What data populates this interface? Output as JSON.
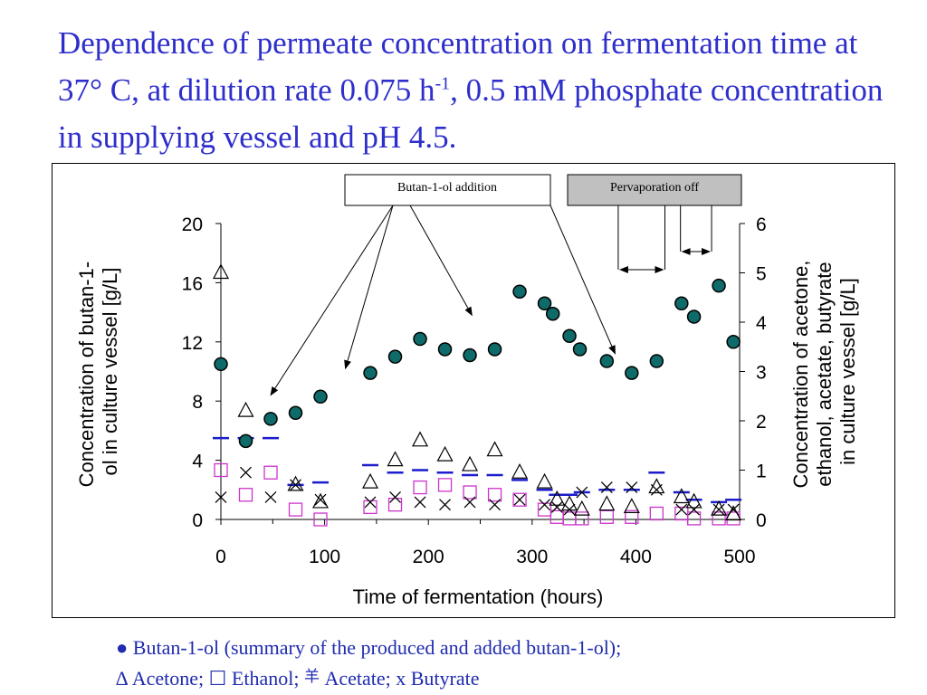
{
  "slide": {
    "title_main": "Dependence of permeate concentration on fermentation time at 37°  C, at dilution rate 0.075 h",
    "title_sup": "-1",
    "title_end": ", 0.5 mM phosphate concentration in supplying vessel and pH 4.5."
  },
  "caption": {
    "line1_symbol": "●",
    "line1_text": " Butan-1-ol (summary of the produced and added butan-1-ol);",
    "line2_acetone": "∆ Acetone; ",
    "line2_ethanol_symbol": "☐",
    "line2_ethanol": " Ethanol; ",
    "line2_acetate_symbol": "羊",
    "line2_acetate": " Acetate; x Butyrate"
  },
  "colors": {
    "title": "#2e2ecc",
    "butanol_fill": "#0f6a6a",
    "ethanol": "#cc33cc",
    "acetate": "#1c1ccc",
    "acetone": "#000000",
    "butyrate": "#000000",
    "poff_box": "#c0c0c0"
  },
  "chart_data": {
    "type": "scatter",
    "xlabel": "Time of fermentation (hours)",
    "ylabel_left": "Concentration of butan-1-ol in culture vessel [g/L]",
    "ylabel_right": "Concentration of acetone, ethanol, acetate, butyrate in culture vessel [g/L]",
    "xlim": [
      0,
      500
    ],
    "ylim_left": [
      0,
      20
    ],
    "ylim_right": [
      0,
      6
    ],
    "xticks": [
      0,
      100,
      200,
      300,
      400,
      500
    ],
    "yticks_left": [
      0,
      4,
      8,
      12,
      16,
      20
    ],
    "yticks_right": [
      0,
      1,
      2,
      3,
      4,
      5,
      6
    ],
    "annotations": {
      "butanol_addition": "Butan-1-ol addition",
      "pervaporation_off": "Pervaporation off",
      "addition_times": [
        48,
        120,
        242,
        380
      ],
      "pervaporation_off_intervals": [
        [
          383,
          428
        ],
        [
          443,
          473
        ]
      ]
    },
    "series": [
      {
        "name": "Butan-1-ol",
        "axis": "left",
        "x": [
          0,
          24,
          48,
          72,
          96,
          144,
          168,
          192,
          216,
          240,
          264,
          288,
          312,
          320,
          336,
          346,
          372,
          396,
          420,
          444,
          456,
          480,
          494
        ],
        "y": [
          10.5,
          5.3,
          6.8,
          7.2,
          8.3,
          9.9,
          11.0,
          12.2,
          11.5,
          11.1,
          11.5,
          15.4,
          14.6,
          13.9,
          12.4,
          11.5,
          10.7,
          9.9,
          10.7,
          14.6,
          13.7,
          15.8,
          12.0
        ]
      },
      {
        "name": "Acetone",
        "axis": "right",
        "x": [
          0,
          24,
          72,
          96,
          144,
          168,
          192,
          216,
          240,
          264,
          288,
          312,
          324,
          336,
          348,
          372,
          396,
          420,
          444,
          456,
          480,
          494
        ],
        "y": [
          5.0,
          2.2,
          0.7,
          0.35,
          0.75,
          1.2,
          1.6,
          1.3,
          1.1,
          1.4,
          0.95,
          0.75,
          0.4,
          0.3,
          0.2,
          0.3,
          0.25,
          0.65,
          0.45,
          0.35,
          0.2,
          0.1
        ]
      },
      {
        "name": "Ethanol",
        "axis": "right",
        "x": [
          0,
          24,
          48,
          72,
          96,
          144,
          168,
          192,
          216,
          240,
          264,
          288,
          312,
          324,
          336,
          348,
          372,
          396,
          420,
          444,
          456,
          480,
          494
        ],
        "y": [
          1.0,
          0.5,
          0.95,
          0.2,
          0.0,
          0.25,
          0.3,
          0.65,
          0.7,
          0.55,
          0.5,
          0.4,
          0.2,
          0.05,
          0.02,
          0.02,
          0.05,
          0.05,
          0.12,
          0.12,
          0.02,
          0.02,
          0.02
        ]
      },
      {
        "name": "Acetate",
        "axis": "right",
        "x": [
          0,
          24,
          48,
          72,
          96,
          144,
          168,
          192,
          216,
          240,
          264,
          288,
          312,
          324,
          336,
          348,
          372,
          396,
          420,
          444,
          456,
          480,
          494
        ],
        "y": [
          1.65,
          1.65,
          1.65,
          0.7,
          0.75,
          1.1,
          0.95,
          1.0,
          0.95,
          0.9,
          0.9,
          0.8,
          0.6,
          0.5,
          0.5,
          0.55,
          0.6,
          0.6,
          0.95,
          0.55,
          0.4,
          0.35,
          0.4
        ]
      },
      {
        "name": "Butyrate",
        "axis": "right",
        "x": [
          0,
          24,
          48,
          72,
          96,
          144,
          168,
          192,
          216,
          240,
          264,
          288,
          312,
          324,
          336,
          348,
          372,
          396,
          420,
          444,
          456,
          480,
          494
        ],
        "y": [
          0.45,
          0.95,
          0.45,
          0.7,
          0.4,
          0.35,
          0.45,
          0.35,
          0.3,
          0.35,
          0.3,
          0.4,
          0.3,
          0.25,
          0.2,
          0.55,
          0.65,
          0.65,
          0.6,
          0.2,
          0.2,
          0.2,
          0.2
        ]
      }
    ]
  }
}
